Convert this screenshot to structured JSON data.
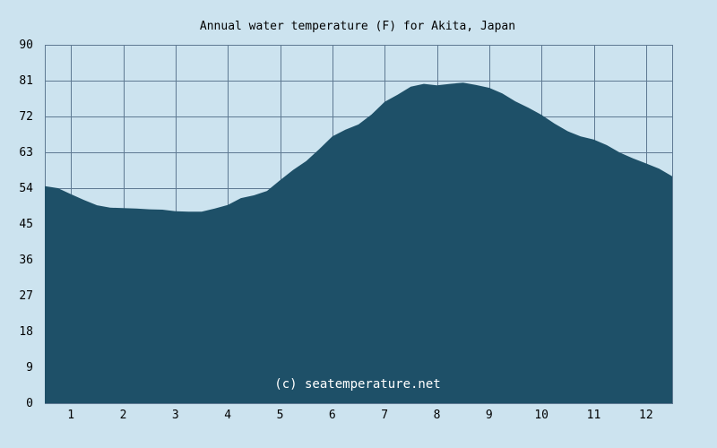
{
  "chart_data": {
    "type": "area",
    "title": "Annual water temperature (F) for Akita, Japan",
    "credit": "(c) seatemperature.net",
    "xlabel": "",
    "ylabel": "",
    "x_ticks": [
      "1",
      "2",
      "3",
      "4",
      "5",
      "6",
      "7",
      "8",
      "9",
      "10",
      "11",
      "12"
    ],
    "y_ticks": [
      "0",
      "9",
      "18",
      "27",
      "36",
      "45",
      "54",
      "63",
      "72",
      "81",
      "90"
    ],
    "ylim": [
      0,
      90
    ],
    "xlim": [
      0.5,
      12.5
    ],
    "grid": true,
    "colors": {
      "background": "#cce3ef",
      "fill": "#1e5068",
      "grid": "#5f7a93"
    },
    "series": [
      {
        "x": [
          0.5,
          0.75,
          1.0,
          1.25,
          1.5,
          1.75,
          2.0,
          2.25,
          2.5,
          2.75,
          3.0,
          3.25,
          3.5,
          3.75,
          4.0,
          4.25,
          4.5,
          4.75,
          5.0,
          5.25,
          5.5,
          5.75,
          6.0,
          6.25,
          6.5,
          6.75,
          7.0,
          7.25,
          7.5,
          7.75,
          8.0,
          8.25,
          8.5,
          8.75,
          9.0,
          9.25,
          9.5,
          9.75,
          10.0,
          10.25,
          10.5,
          10.75,
          11.0,
          11.25,
          11.5,
          11.75,
          12.0,
          12.25,
          12.5
        ],
        "values": [
          54.5,
          54.0,
          52.5,
          51.0,
          49.7,
          49.1,
          49.0,
          48.9,
          48.7,
          48.6,
          48.2,
          48.1,
          48.1,
          48.9,
          49.8,
          51.5,
          52.2,
          53.3,
          56.0,
          58.6,
          60.8,
          63.8,
          67.0,
          68.7,
          70.0,
          72.5,
          75.7,
          77.5,
          79.5,
          80.2,
          79.8,
          80.2,
          80.5,
          79.9,
          79.2,
          77.8,
          75.8,
          74.2,
          72.4,
          70.2,
          68.3,
          67.0,
          66.2,
          64.8,
          62.9,
          61.5,
          60.2,
          58.9,
          57.0
        ]
      }
    ]
  }
}
